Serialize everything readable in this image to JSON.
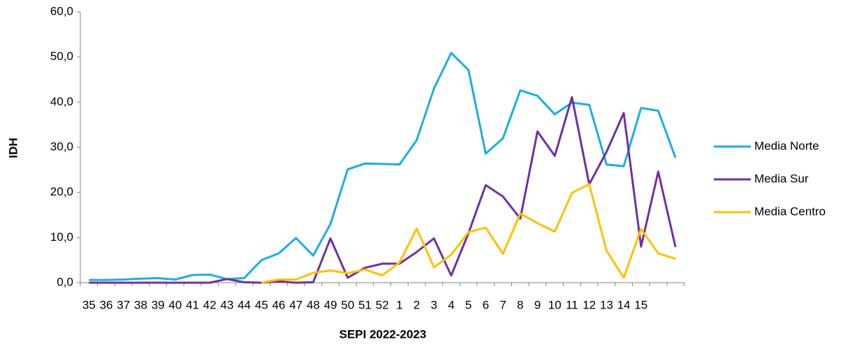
{
  "chart_data": {
    "type": "line",
    "x_label": "SEPI 2022-2023",
    "y_label": "IDH",
    "categories": [
      "35",
      "36",
      "37",
      "38",
      "39",
      "40",
      "41",
      "42",
      "43",
      "44",
      "45",
      "46",
      "47",
      "48",
      "49",
      "50",
      "51",
      "52",
      "1",
      "2",
      "3",
      "4",
      "5",
      "6",
      "7",
      "8",
      "9",
      "10",
      "11",
      "12",
      "13",
      "14",
      "15",
      null,
      null
    ],
    "series": [
      {
        "name": "Media Norte",
        "color": "#1aaee5",
        "values": [
          0.6,
          0.6,
          0.7,
          0.9,
          1.0,
          0.7,
          1.7,
          1.8,
          0.8,
          1.0,
          5.0,
          6.5,
          9.9,
          6.0,
          13.0,
          25.1,
          26.4,
          26.3,
          26.2,
          31.6,
          43.0,
          50.9,
          47.1,
          28.6,
          32.0,
          42.6,
          41.4,
          37.3,
          39.9,
          39.4,
          26.2,
          25.8,
          38.7,
          38.1,
          27.7
        ]
      },
      {
        "name": "Media Sur",
        "color": "#7030a0",
        "values": [
          0,
          0,
          0,
          0,
          0,
          0,
          0,
          0,
          0.8,
          0.1,
          0,
          0.3,
          0,
          0.1,
          9.8,
          1.1,
          3.3,
          4.2,
          4.2,
          6.8,
          9.8,
          1.6,
          11.0,
          21.6,
          19.1,
          14.2,
          33.5,
          28.1,
          41.1,
          21.8,
          29.0,
          37.6,
          8.0,
          24.6,
          7.9
        ]
      },
      {
        "name": "Media Centro",
        "color": "#ffc000",
        "values": [
          null,
          null,
          null,
          null,
          null,
          null,
          null,
          null,
          null,
          null,
          0.0,
          0.7,
          0.7,
          2.2,
          2.7,
          2.1,
          2.9,
          1.6,
          4.5,
          12.0,
          3.4,
          6.2,
          11.2,
          12.2,
          6.4,
          15.3,
          13.2,
          11.3,
          19.9,
          21.8,
          7.1,
          1.1,
          11.9,
          6.5,
          5.3
        ]
      }
    ],
    "ylim": [
      0,
      60
    ],
    "yticks": [
      {
        "value": 0,
        "label": "0,0"
      },
      {
        "value": 10,
        "label": "10,0"
      },
      {
        "value": 20,
        "label": "20,0"
      },
      {
        "value": 30,
        "label": "30,0"
      },
      {
        "value": 40,
        "label": "40,0"
      },
      {
        "value": 50,
        "label": "50,0"
      },
      {
        "value": 60,
        "label": "60,0"
      }
    ],
    "legend": "right"
  }
}
